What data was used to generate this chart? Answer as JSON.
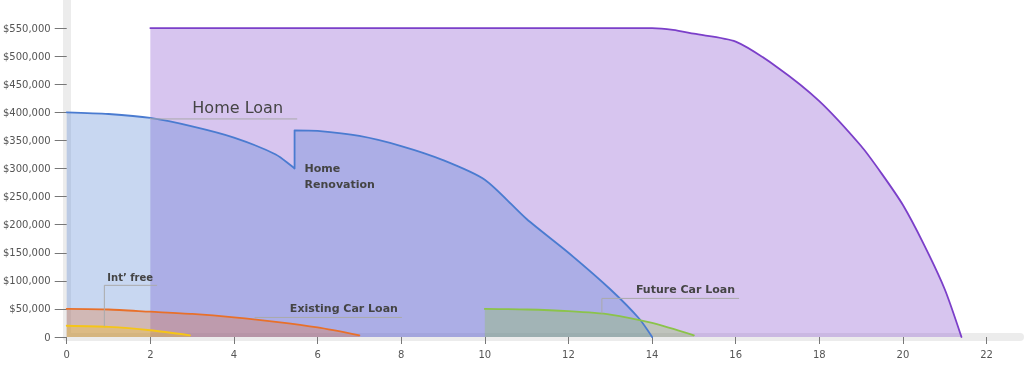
{
  "chart_data": {
    "type": "area",
    "marker": "none",
    "line_style": "solid",
    "xlim": [
      0,
      22.8
    ],
    "xticks": [
      0,
      2,
      4,
      6,
      8,
      10,
      12,
      14,
      16,
      18,
      20,
      22
    ],
    "ylim": [
      0,
      600000
    ],
    "yticks": [
      {
        "value": 0,
        "label": "0"
      },
      {
        "value": 50000,
        "label": "$50,000"
      },
      {
        "value": 100000,
        "label": "$100,000"
      },
      {
        "value": 150000,
        "label": "$150,000"
      },
      {
        "value": 200000,
        "label": "$200,000"
      },
      {
        "value": 250000,
        "label": "$250,000"
      },
      {
        "value": 300000,
        "label": "$300,000"
      },
      {
        "value": 350000,
        "label": "$350,000"
      },
      {
        "value": 400000,
        "label": "$400,000"
      },
      {
        "value": 450000,
        "label": "$450,000"
      },
      {
        "value": 500000,
        "label": "$500,000"
      },
      {
        "value": 550000,
        "label": "$550,000"
      }
    ],
    "series": [
      {
        "color": "#7b3fc9",
        "x": [
          2,
          14,
          14.5,
          15,
          16,
          17,
          18,
          19,
          19.5,
          20,
          20.5,
          21,
          21.4
        ],
        "values": [
          550000,
          550000,
          547000,
          540000,
          526000,
          480000,
          420000,
          340000,
          290000,
          235000,
          165000,
          85000,
          0
        ]
      },
      {
        "color": "#4a7bd0",
        "x": [
          0,
          1,
          2,
          3,
          4,
          5,
          5.45,
          5.45,
          6,
          7,
          8,
          9,
          10,
          11,
          12,
          13,
          13.7,
          14
        ],
        "values": [
          400000,
          397000,
          390000,
          375000,
          355000,
          325000,
          300000,
          368000,
          367000,
          358000,
          340000,
          315000,
          280000,
          210000,
          150000,
          85000,
          32000,
          0
        ]
      },
      {
        "color": "#8bc34a",
        "x": [
          10,
          11,
          12,
          13,
          14,
          15
        ],
        "values": [
          50000,
          49000,
          46000,
          40000,
          25000,
          3000
        ]
      },
      {
        "color": "#e8702a",
        "x": [
          0,
          1,
          2,
          3,
          4,
          5,
          6,
          7
        ],
        "values": [
          50000,
          49000,
          45000,
          41000,
          35000,
          27000,
          17000,
          3000
        ]
      },
      {
        "color": "#f5c518",
        "x": [
          0,
          1,
          2,
          2.95
        ],
        "values": [
          20000,
          18000,
          12000,
          3000
        ]
      }
    ],
    "annotations": [
      {
        "text": "Home Loan",
        "x": 2,
        "y": 390000
      },
      {
        "text": "Home Renovation",
        "x": 5.45,
        "y": 300000
      },
      {
        "text": "Int’ free",
        "x": 0.9,
        "y": 19000
      },
      {
        "text": "Existing Car Loan",
        "x": 4.5,
        "y": 33000
      },
      {
        "text": "Future Car Loan",
        "x": 12.8,
        "y": 42000
      }
    ]
  }
}
